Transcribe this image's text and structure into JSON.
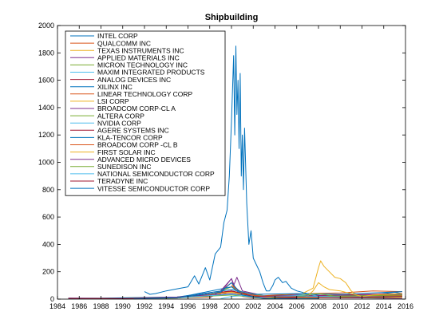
{
  "chart_data": {
    "type": "line",
    "title": "Shipbuilding",
    "xlabel": "",
    "ylabel": "",
    "xlim": [
      1984,
      2016
    ],
    "ylim": [
      0,
      2000
    ],
    "xticks": [
      "1984",
      "1986",
      "1988",
      "1990",
      "1992",
      "1994",
      "1996",
      "1998",
      "2000",
      "2002",
      "2004",
      "2006",
      "2008",
      "2010",
      "2012",
      "2014",
      "2016"
    ],
    "yticks": [
      "0",
      "200",
      "400",
      "600",
      "800",
      "1000",
      "1200",
      "1400",
      "1600",
      "1800",
      "2000"
    ],
    "grid": false,
    "legend_position": "top-left",
    "series": [
      {
        "name": "INTEL CORP",
        "color": "#0072bd",
        "x": [
          1992.0,
          1992.5,
          1993.0,
          1994.0,
          1995.0,
          1996.0,
          1996.6,
          1997.0,
          1997.6,
          1998.0,
          1998.5,
          1999.0,
          1999.3,
          1999.6,
          1999.8,
          2000.0,
          2000.2,
          2000.3,
          2000.4,
          2000.5,
          2000.6,
          2000.7,
          2000.8,
          2000.9,
          2001.0,
          2001.1,
          2001.2,
          2001.4,
          2001.6,
          2001.8,
          2002.0,
          2002.3,
          2002.6,
          2002.9,
          2003.2,
          2003.5,
          2003.8,
          2004.0,
          2004.3,
          2004.7,
          2005.0,
          2005.5,
          2006.0,
          2007.0,
          2008.0,
          2009.0,
          2010.0,
          2011.0,
          2012.0,
          2013.0,
          2014.0,
          2015.0,
          2015.7
        ],
        "y": [
          55,
          35,
          40,
          60,
          75,
          90,
          170,
          110,
          230,
          140,
          330,
          380,
          560,
          650,
          900,
          1300,
          1780,
          1200,
          1850,
          1350,
          1600,
          1100,
          1650,
          900,
          1200,
          800,
          1250,
          700,
          400,
          500,
          300,
          250,
          200,
          120,
          60,
          60,
          100,
          140,
          160,
          120,
          130,
          80,
          60,
          40,
          30,
          20,
          20,
          25,
          25,
          30,
          40,
          50,
          40
        ]
      },
      {
        "name": "QUALCOMM INC",
        "color": "#d95319",
        "x": [
          1992,
          1995,
          1998,
          1999,
          1999.5,
          2000,
          2000.3,
          2001,
          2002,
          2004,
          2007,
          2010,
          2013,
          2015.7
        ],
        "y": [
          5,
          10,
          15,
          40,
          90,
          120,
          80,
          50,
          20,
          30,
          40,
          45,
          60,
          55
        ]
      },
      {
        "name": "TEXAS INSTRUMENTS INC",
        "color": "#edb120",
        "x": [
          1985,
          1990,
          1995,
          1999,
          2000,
          2001,
          2003,
          2006,
          2007.5,
          2008,
          2008.2,
          2008.5,
          2009,
          2009.5,
          2010,
          2010.5,
          2011,
          2011.5,
          2012,
          2014,
          2015.7
        ],
        "y": [
          5,
          5,
          10,
          30,
          60,
          40,
          20,
          20,
          80,
          230,
          280,
          240,
          200,
          160,
          150,
          120,
          60,
          30,
          20,
          15,
          15
        ]
      },
      {
        "name": "APPLIED MATERIALS INC",
        "color": "#7e2f8e",
        "x": [
          1985,
          1995,
          1999,
          2000,
          2000.2,
          2000.5,
          2001,
          2003,
          2008,
          2015.7
        ],
        "y": [
          3,
          10,
          50,
          150,
          100,
          160,
          60,
          25,
          15,
          20
        ]
      },
      {
        "name": "MICRON TECHNOLOGY INC",
        "color": "#77ac30",
        "x": [
          1985,
          1995,
          1998,
          2000,
          2001,
          2003,
          2006,
          2010,
          2013,
          2015.7
        ],
        "y": [
          4,
          15,
          30,
          90,
          50,
          25,
          30,
          20,
          25,
          30
        ]
      },
      {
        "name": "MAXIM INTEGRATED PRODUCTS",
        "color": "#4dbeee",
        "x": [
          1985,
          1995,
          2000,
          2002,
          2006,
          2010,
          2015.7
        ],
        "y": [
          2,
          8,
          40,
          20,
          25,
          20,
          25
        ]
      },
      {
        "name": "ANALOG DEVICES INC",
        "color": "#a2142f",
        "x": [
          1985,
          1995,
          2000,
          2002,
          2006,
          2010,
          2015.7
        ],
        "y": [
          3,
          10,
          60,
          25,
          25,
          30,
          40
        ]
      },
      {
        "name": "XILINX INC",
        "color": "#0072bd",
        "x": [
          1990,
          1995,
          2000,
          2001,
          2004,
          2010,
          2015.7
        ],
        "y": [
          2,
          10,
          90,
          30,
          20,
          15,
          20
        ]
      },
      {
        "name": "LINEAR TECHNOLOGY CORP",
        "color": "#d95319",
        "x": [
          1990,
          1995,
          2000,
          2002,
          2006,
          2010,
          2015.7
        ],
        "y": [
          2,
          8,
          55,
          25,
          25,
          20,
          25
        ]
      },
      {
        "name": "LSI CORP",
        "color": "#edb120",
        "x": [
          1990,
          1995,
          2000,
          2002,
          2006,
          2010,
          2015.7
        ],
        "y": [
          5,
          15,
          50,
          20,
          10,
          10,
          10
        ]
      },
      {
        "name": "BROADCOM CORP-CL A",
        "color": "#7e2f8e",
        "x": [
          1998,
          1999,
          2000,
          2000.3,
          2001,
          2003,
          2008,
          2012,
          2015.7
        ],
        "y": [
          10,
          60,
          150,
          90,
          40,
          20,
          25,
          30,
          35
        ]
      },
      {
        "name": "ALTERA CORP",
        "color": "#77ac30",
        "x": [
          1990,
          1995,
          2000,
          2002,
          2008,
          2015.7
        ],
        "y": [
          2,
          8,
          40,
          20,
          20,
          30
        ]
      },
      {
        "name": "NVIDIA CORP",
        "color": "#4dbeee",
        "x": [
          1999,
          2000,
          2002,
          2004,
          2007,
          2008,
          2010,
          2015.7
        ],
        "y": [
          3,
          20,
          30,
          15,
          40,
          20,
          15,
          20
        ]
      },
      {
        "name": "AGERE SYSTEMS INC",
        "color": "#a2142f",
        "x": [
          2001,
          2002,
          2004,
          2006
        ],
        "y": [
          20,
          10,
          8,
          8
        ]
      },
      {
        "name": "KLA-TENCOR CORP",
        "color": "#0072bd",
        "x": [
          1985,
          1995,
          2000,
          2002,
          2006,
          2010,
          2015.7
        ],
        "y": [
          3,
          15,
          70,
          35,
          40,
          35,
          55
        ]
      },
      {
        "name": "BROADCOM CORP -CL B",
        "color": "#d95319",
        "x": [
          2000,
          2001,
          2003,
          2006
        ],
        "y": [
          100,
          40,
          20,
          20
        ]
      },
      {
        "name": "FIRST SOLAR INC",
        "color": "#edb120",
        "x": [
          2006.8,
          2007.5,
          2008,
          2008.5,
          2009,
          2010,
          2011,
          2012,
          2013,
          2015.7
        ],
        "y": [
          10,
          60,
          120,
          90,
          70,
          60,
          40,
          20,
          30,
          40
        ]
      },
      {
        "name": "ADVANCED MICRO DEVICES",
        "color": "#7e2f8e",
        "x": [
          1985,
          1990,
          1995,
          2000,
          2002,
          2006,
          2010,
          2015.7
        ],
        "y": [
          8,
          5,
          15,
          40,
          15,
          30,
          10,
          5
        ]
      },
      {
        "name": "SUNEDISON INC",
        "color": "#77ac30",
        "x": [
          1995,
          2000,
          2003,
          2006,
          2008,
          2010,
          2013,
          2015.7
        ],
        "y": [
          10,
          30,
          5,
          25,
          40,
          15,
          10,
          20
        ]
      },
      {
        "name": "NATIONAL SEMICONDUCTOR CORP",
        "color": "#4dbeee",
        "x": [
          1985,
          1990,
          1995,
          2000,
          2002,
          2006,
          2010
        ],
        "y": [
          5,
          3,
          10,
          35,
          15,
          25,
          15
        ]
      },
      {
        "name": "TERADYNE INC",
        "color": "#a2142f",
        "x": [
          1985,
          1990,
          1995,
          2000,
          2002,
          2006,
          2010,
          2015.7
        ],
        "y": [
          5,
          3,
          10,
          60,
          20,
          15,
          10,
          20
        ]
      },
      {
        "name": "VITESSE SEMICONDUCTOR CORP",
        "color": "#0072bd",
        "x": [
          1991,
          1995,
          1999,
          2000,
          2001,
          2003,
          2008
        ],
        "y": [
          2,
          10,
          50,
          120,
          30,
          5,
          3
        ]
      }
    ]
  }
}
